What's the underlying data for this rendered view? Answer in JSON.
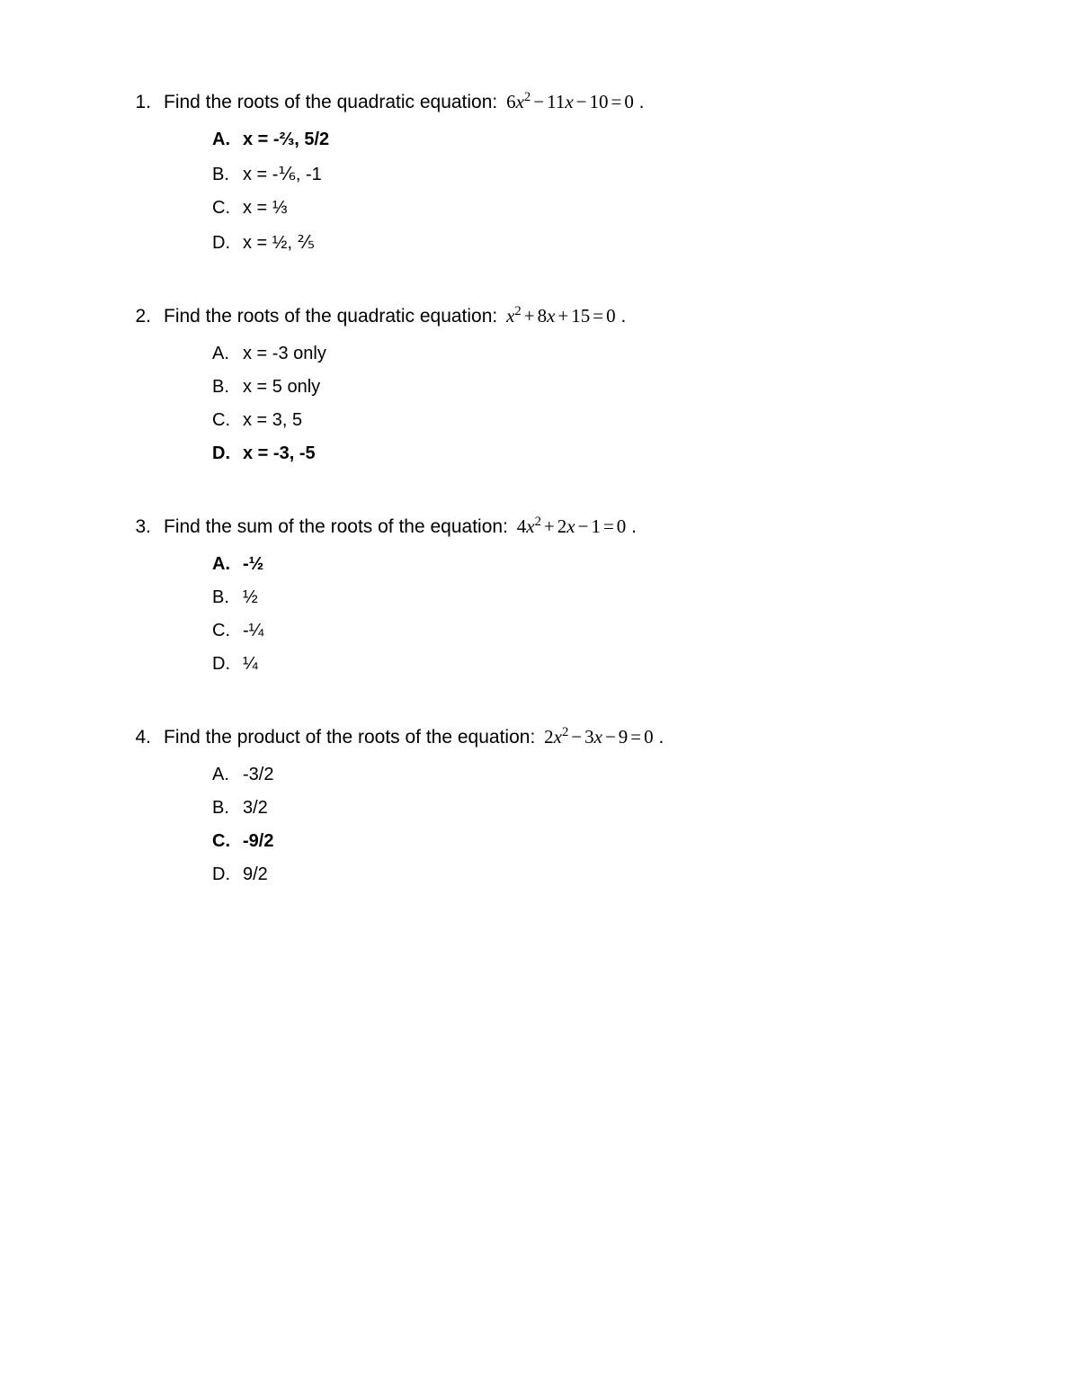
{
  "text_color": "#000000",
  "background_color": "#ffffff",
  "base_font_size": 21,
  "option_font_size": 20,
  "questions": [
    {
      "number": "1.",
      "prompt": "Find the roots of the quadratic equation:",
      "equation": {
        "a": "6",
        "b_sign": "−",
        "b": "11",
        "c_sign": "−",
        "c": "10",
        "rhs": "0"
      },
      "options": [
        {
          "letter": "A.",
          "text": "x = -⅔, 5/2",
          "bold": true
        },
        {
          "letter": "B.",
          "text": "x = -⅙, -1",
          "bold": false
        },
        {
          "letter": "C.",
          "text": "x = ⅓",
          "bold": false
        },
        {
          "letter": "D.",
          "text": "x = ½, ⅖",
          "bold": false
        }
      ]
    },
    {
      "number": "2.",
      "prompt": "Find the roots of the quadratic equation:",
      "equation": {
        "a": "",
        "b_sign": "+",
        "b": "8",
        "c_sign": "+",
        "c": "15",
        "rhs": "0"
      },
      "options": [
        {
          "letter": "A.",
          "text": "x = -3 only",
          "bold": false
        },
        {
          "letter": "B.",
          "text": "x = 5 only",
          "bold": false
        },
        {
          "letter": "C.",
          "text": "x = 3, 5",
          "bold": false
        },
        {
          "letter": "D.",
          "text": "x = -3, -5",
          "bold": true
        }
      ]
    },
    {
      "number": "3.",
      "prompt": "Find the sum of the roots of the equation:",
      "equation": {
        "a": "4",
        "b_sign": "+",
        "b": "2",
        "c_sign": "−",
        "c": "1",
        "rhs": "0"
      },
      "options": [
        {
          "letter": "A.",
          "text": "-½",
          "bold": true
        },
        {
          "letter": "B.",
          "text": "½",
          "bold": false
        },
        {
          "letter": "C.",
          "text": "-¼",
          "bold": false
        },
        {
          "letter": "D.",
          "text": "¼",
          "bold": false
        }
      ]
    },
    {
      "number": "4.",
      "prompt": "Find the product of the roots of the equation:",
      "equation": {
        "a": "2",
        "b_sign": "−",
        "b": "3",
        "c_sign": "−",
        "c": "9",
        "rhs": "0"
      },
      "options": [
        {
          "letter": "A.",
          "text": "-3/2",
          "bold": false
        },
        {
          "letter": "B.",
          "text": "3/2",
          "bold": false
        },
        {
          "letter": "C.",
          "text": "-9/2",
          "bold": true
        },
        {
          "letter": "D.",
          "text": "9/2",
          "bold": false
        }
      ]
    }
  ]
}
